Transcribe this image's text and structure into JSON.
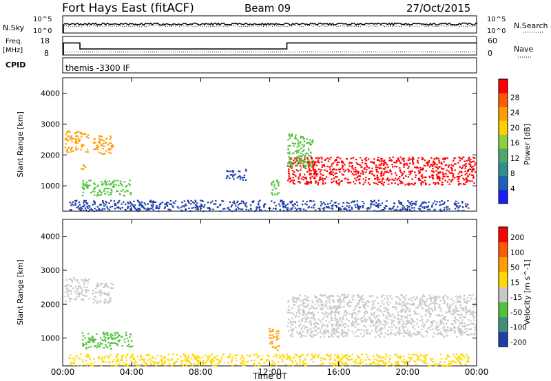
{
  "header": {
    "station": "Fort Hays East (fitACF)",
    "beam": "Beam 09",
    "date": "27/Oct/2015"
  },
  "noise_panel": {
    "left_label": "N.Sky",
    "right_label": "N.Search",
    "left_ticks": [
      "10^5",
      "10^0"
    ],
    "right_ticks": [
      "10^5",
      "10^0"
    ]
  },
  "freq_panel": {
    "left_label_1": "Freq.",
    "left_label_2": "[MHz]",
    "right_label": "Nave",
    "left_ticks": [
      "18",
      "8"
    ],
    "right_ticks": [
      "60",
      "0"
    ]
  },
  "cpid": {
    "label": "CPID",
    "value": "themis -3300 IF"
  },
  "x_axis": {
    "label": "Time UT",
    "ticks": [
      "00:00",
      "04:00",
      "08:00",
      "12:00",
      "16:00",
      "20:00",
      "00:00"
    ]
  },
  "colors": {
    "red": "#ff0000",
    "orange": "#ff9f00",
    "yellow": "#ffd800",
    "green": "#4fc43a",
    "teal": "#3f8f7a",
    "blue": "#1f3fa8",
    "gray": "#c8c8c8"
  },
  "chart_data": [
    {
      "type": "heatmap",
      "title": "Power",
      "xlabel": "Time UT",
      "ylabel": "Slant Range [km]",
      "x_range_hours": [
        0,
        24
      ],
      "ylim": [
        180,
        4500
      ],
      "y_ticks": [
        "1000",
        "2000",
        "3000",
        "4000"
      ],
      "colorbar_label": "Power [dB]",
      "colorbar_ticks": [
        "4",
        "8",
        "12",
        "16",
        "20",
        "24",
        "28"
      ],
      "colorbar_colors": [
        "#1a1aff",
        "#1f5fb8",
        "#2f8f8f",
        "#4fa86b",
        "#8fd040",
        "#ffd000",
        "#ff9f00",
        "#ff5a00",
        "#ff0000"
      ],
      "regions": [
        {
          "t0": 0.1,
          "t1": 1.5,
          "r0": 2100,
          "r1": 2800,
          "level": "orange"
        },
        {
          "t0": 1.0,
          "t1": 1.3,
          "r0": 1550,
          "r1": 1800,
          "level": "orange"
        },
        {
          "t0": 1.7,
          "t1": 2.9,
          "r0": 2050,
          "r1": 2650,
          "level": "orange"
        },
        {
          "t0": 1.1,
          "t1": 4.0,
          "r0": 700,
          "r1": 1200,
          "level": "green"
        },
        {
          "t0": 9.4,
          "t1": 10.6,
          "r0": 1200,
          "r1": 1550,
          "level": "blue"
        },
        {
          "t0": 12.0,
          "t1": 12.6,
          "r0": 700,
          "r1": 1200,
          "level": "green"
        },
        {
          "t0": 13.0,
          "t1": 23.9,
          "r0": 1050,
          "r1": 1950,
          "level": "red"
        },
        {
          "t0": 13.0,
          "t1": 14.5,
          "r0": 1600,
          "r1": 2700,
          "level": "green"
        },
        {
          "t0": 0.3,
          "t1": 23.5,
          "r0": 200,
          "r1": 550,
          "level": "blue"
        }
      ]
    },
    {
      "type": "heatmap",
      "title": "Velocity",
      "xlabel": "Time UT",
      "ylabel": "Slant Range [km]",
      "x_range_hours": [
        0,
        24
      ],
      "ylim": [
        180,
        4500
      ],
      "y_ticks": [
        "1000",
        "2000",
        "3000",
        "4000"
      ],
      "colorbar_label": "Velocity [m s^-1]",
      "colorbar_ticks": [
        "200",
        "100",
        "50",
        "15",
        "-15",
        "-50",
        "-100",
        "-200"
      ],
      "colorbar_colors": [
        "#1f3fa8",
        "#3f8f7a",
        "#4fc43a",
        "#c8c8c8",
        "#ffd800",
        "#ff9f00",
        "#ff5a00",
        "#ff0000"
      ],
      "regions": [
        {
          "t0": 0.1,
          "t1": 1.5,
          "r0": 2100,
          "r1": 2800,
          "level": "gray"
        },
        {
          "t0": 1.7,
          "t1": 2.9,
          "r0": 2050,
          "r1": 2650,
          "level": "gray"
        },
        {
          "t0": 1.1,
          "t1": 4.0,
          "r0": 700,
          "r1": 1200,
          "level": "green"
        },
        {
          "t0": 11.9,
          "t1": 12.5,
          "r0": 650,
          "r1": 1300,
          "level": "orange"
        },
        {
          "t0": 13.0,
          "t1": 23.9,
          "r0": 1050,
          "r1": 2300,
          "level": "gray"
        },
        {
          "t0": 0.3,
          "t1": 23.5,
          "r0": 200,
          "r1": 550,
          "level": "yellow"
        }
      ]
    }
  ]
}
